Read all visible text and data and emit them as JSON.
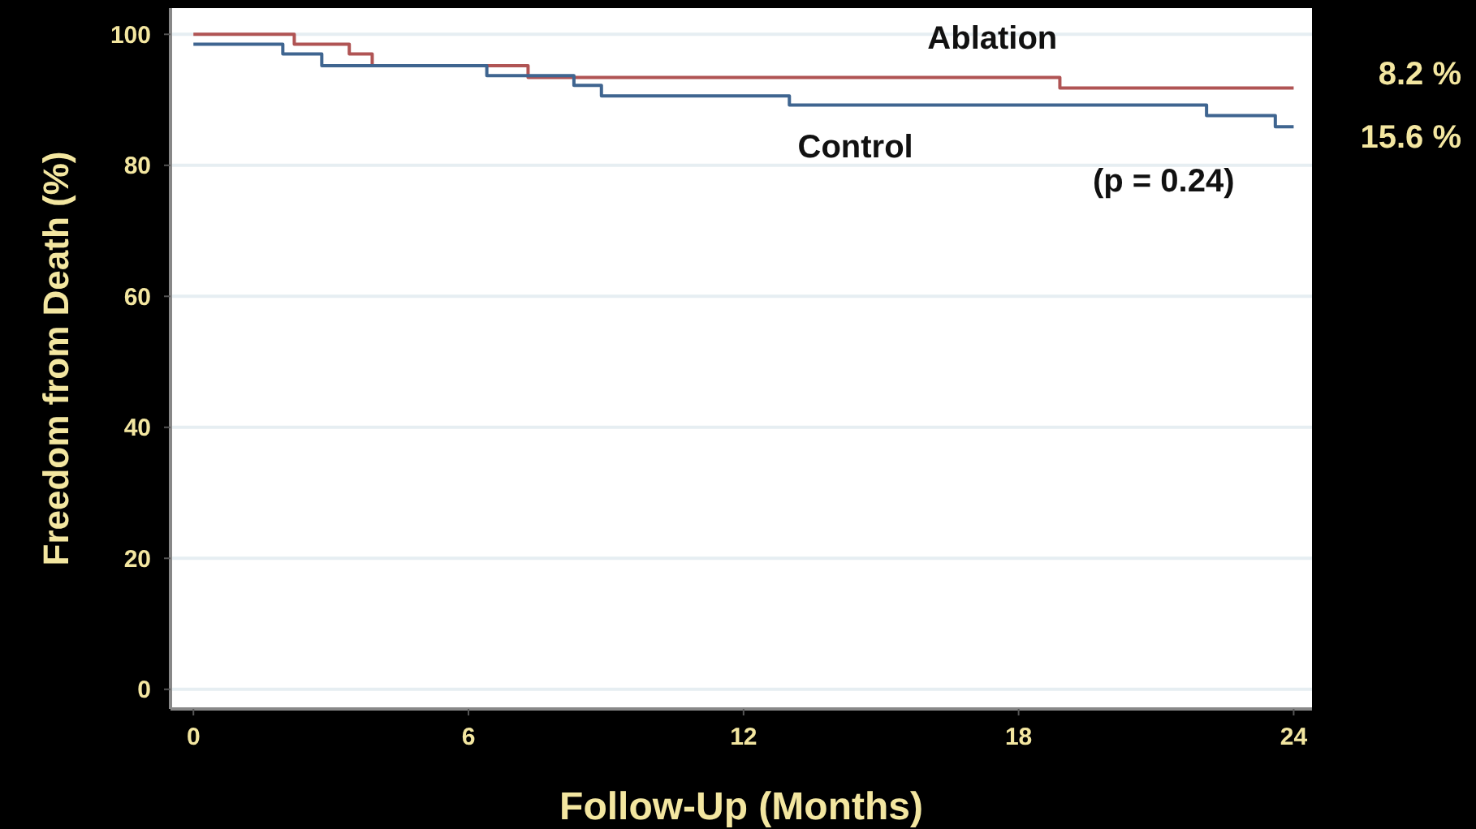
{
  "chart_data": {
    "type": "step",
    "xlabel": "Follow-Up (Months)",
    "ylabel": "Freedom from Death (%)",
    "xlim": [
      -0.5,
      24.4
    ],
    "xticks": [
      0,
      6,
      12,
      18,
      24
    ],
    "ylim": [
      -3,
      104
    ],
    "yticks": [
      0,
      20,
      40,
      60,
      80,
      100
    ],
    "grid": "y",
    "series": [
      {
        "name": "Ablation",
        "color": "#b05454",
        "x": [
          0,
          2.2,
          3.4,
          3.9,
          7.3,
          18.9,
          24
        ],
        "values": [
          100,
          98.5,
          97,
          95.2,
          93.4,
          91.8,
          91.8
        ]
      },
      {
        "name": "Control",
        "color": "#3f6590",
        "x": [
          0,
          1.95,
          2.8,
          6.4,
          8.3,
          8.9,
          13.0,
          22.1,
          23.6,
          24
        ],
        "values": [
          98.5,
          97,
          95.2,
          93.7,
          92.2,
          90.6,
          89.2,
          87.6,
          85.9,
          85.9
        ]
      }
    ],
    "annotations": [
      "(p = 0.24)",
      "8.2 %",
      "15.6 %"
    ]
  }
}
